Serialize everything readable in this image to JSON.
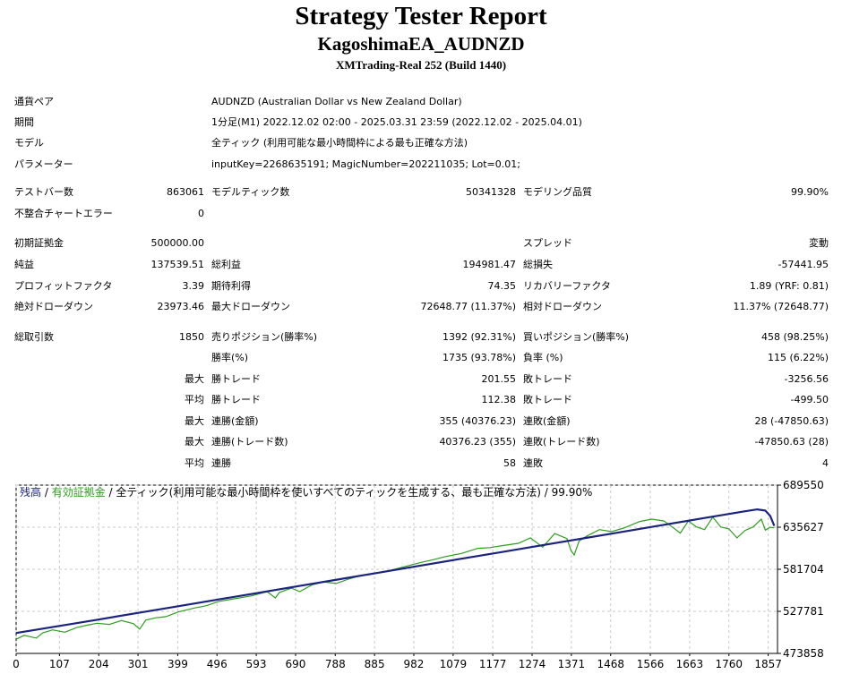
{
  "header": {
    "title": "Strategy Tester Report",
    "ea_name": "KagoshimaEA_AUDNZD",
    "server": "XMTrading-Real 252 (Build 1440)"
  },
  "settings": {
    "symbol_label": "通貨ペア",
    "symbol_value": "AUDNZD (Australian Dollar vs New Zealand Dollar)",
    "period_label": "期間",
    "period_value": "1分足(M1) 2022.12.02 02:00 - 2025.03.31 23:59 (2022.12.02 - 2025.04.01)",
    "model_label": "モデル",
    "model_value": "全ティック (利用可能な最小時間枠による最も正確な方法)",
    "params_label": "パラメーター",
    "params_value": "inputKey=2268635191; MagicNumber=202211035; Lot=0.01;"
  },
  "stats": {
    "bars_label": "テストバー数",
    "bars_value": "863061",
    "ticks_label": "モデルティック数",
    "ticks_value": "50341328",
    "quality_label": "モデリング品質",
    "quality_value": "99.90%",
    "mismatch_label": "不整合チャートエラー",
    "mismatch_value": "0",
    "deposit_label": "初期証拠金",
    "deposit_value": "500000.00",
    "spread_label": "スプレッド",
    "spread_value": "変動",
    "net_label": "純益",
    "net_value": "137539.51",
    "gross_profit_label": "総利益",
    "gross_profit_value": "194981.47",
    "gross_loss_label": "総損失",
    "gross_loss_value": "-57441.95",
    "pf_label": "プロフィットファクタ",
    "pf_value": "3.39",
    "expected_label": "期待利得",
    "expected_value": "74.35",
    "recovery_label": "リカバリーファクタ",
    "recovery_value": "1.89 (YRF: 0.81)",
    "abs_dd_label": "絶対ドローダウン",
    "abs_dd_value": "23973.46",
    "max_dd_label": "最大ドローダウン",
    "max_dd_value": "72648.77 (11.37%)",
    "rel_dd_label": "相対ドローダウン",
    "rel_dd_value": "11.37% (72648.77)",
    "trades_label": "総取引数",
    "trades_value": "1850",
    "short_label": "売りポジション(勝率%)",
    "short_value": "1392 (92.31%)",
    "long_label": "買いポジション(勝率%)",
    "long_value": "458 (98.25%)",
    "win_rate_label": "勝率(%)",
    "win_rate_value": "1735 (93.78%)",
    "loss_rate_label": "負率 (%)",
    "loss_rate_value": "115 (6.22%)",
    "largest_prefix": "最大",
    "largest_win_label": "勝トレード",
    "largest_win_value": "201.55",
    "largest_loss_label": "敗トレード",
    "largest_loss_value": "-3256.56",
    "avg_prefix": "平均",
    "avg_win_label": "勝トレード",
    "avg_win_value": "112.38",
    "avg_loss_label": "敗トレード",
    "avg_loss_value": "-499.50",
    "max_cons_prefix": "最大",
    "max_cons_wins_label": "連勝(金額)",
    "max_cons_wins_value": "355 (40376.23)",
    "max_cons_losses_label": "連敗(金額)",
    "max_cons_losses_value": "28 (-47850.63)",
    "max_cons2_prefix": "最大",
    "max_cons_profit_label": "連勝(トレード数)",
    "max_cons_profit_value": "40376.23 (355)",
    "max_cons_loss_label": "連敗(トレード数)",
    "max_cons_loss_value": "-47850.63 (28)",
    "avg_cons_prefix": "平均",
    "avg_cons_wins_label": "連勝",
    "avg_cons_wins_value": "58",
    "avg_cons_losses_label": "連敗",
    "avg_cons_losses_value": "4"
  },
  "chart_data": {
    "type": "line",
    "legend": {
      "balance": "残高",
      "sep1": " / ",
      "equity": "有効証拠金",
      "rest": " / 全ティック(利用可能な最小時間枠を使いすべてのティックを生成する、最も正確な方法) / 99.90%"
    },
    "x_ticks": [
      "0",
      "107",
      "204",
      "301",
      "399",
      "496",
      "593",
      "690",
      "788",
      "885",
      "982",
      "1079",
      "1177",
      "1274",
      "1371",
      "1468",
      "1566",
      "1663",
      "1760",
      "1857"
    ],
    "y_ticks": [
      "689550",
      "635627",
      "581704",
      "527781",
      "473858"
    ],
    "ylim": [
      473858,
      689550
    ],
    "xlim": [
      0,
      1880
    ],
    "colors": {
      "balance": "#1a237e",
      "equity": "#2e9d1e",
      "grid": "#c8c8c8"
    },
    "series": [
      {
        "name": "残高",
        "x": [
          0,
          100,
          200,
          300,
          400,
          500,
          600,
          700,
          800,
          900,
          1000,
          1100,
          1200,
          1300,
          1400,
          1500,
          1600,
          1700,
          1800,
          1830,
          1850,
          1862,
          1872
        ],
        "values": [
          500000,
          508500,
          517000,
          525700,
          534300,
          543000,
          551700,
          560400,
          569100,
          577800,
          586500,
          595200,
          603900,
          612600,
          621300,
          630000,
          638700,
          647400,
          656100,
          658500,
          657000,
          650000,
          637400
        ]
      },
      {
        "name": "有効証拠金",
        "x": [
          0,
          20,
          50,
          65,
          90,
          120,
          150,
          175,
          200,
          230,
          260,
          290,
          305,
          320,
          345,
          370,
          400,
          440,
          470,
          500,
          540,
          580,
          620,
          640,
          650,
          680,
          700,
          730,
          760,
          790,
          820,
          850,
          880,
          910,
          940,
          970,
          1000,
          1030,
          1060,
          1100,
          1140,
          1170,
          1200,
          1240,
          1270,
          1300,
          1330,
          1360,
          1370,
          1378,
          1390,
          1410,
          1440,
          1470,
          1500,
          1540,
          1570,
          1600,
          1620,
          1640,
          1660,
          1680,
          1700,
          1720,
          1740,
          1760,
          1780,
          1800,
          1820,
          1840,
          1850,
          1862,
          1872
        ],
        "values": [
          492000,
          497000,
          493500,
          500000,
          504000,
          501000,
          507000,
          510000,
          512500,
          511000,
          516000,
          512000,
          505000,
          516500,
          519500,
          521000,
          527000,
          532000,
          535000,
          540500,
          544000,
          547500,
          553000,
          545000,
          552000,
          557500,
          553000,
          561500,
          565500,
          563500,
          569000,
          573500,
          575500,
          578500,
          582500,
          586500,
          590500,
          594000,
          598000,
          602000,
          608500,
          609500,
          612000,
          615000,
          622000,
          610000,
          627500,
          621000,
          606000,
          600000,
          618000,
          624500,
          632500,
          630000,
          634500,
          643000,
          646000,
          643500,
          636000,
          628000,
          643500,
          636000,
          632500,
          648500,
          636000,
          633500,
          622000,
          631500,
          636000,
          646000,
          632000,
          635500,
          634800
        ]
      }
    ]
  }
}
